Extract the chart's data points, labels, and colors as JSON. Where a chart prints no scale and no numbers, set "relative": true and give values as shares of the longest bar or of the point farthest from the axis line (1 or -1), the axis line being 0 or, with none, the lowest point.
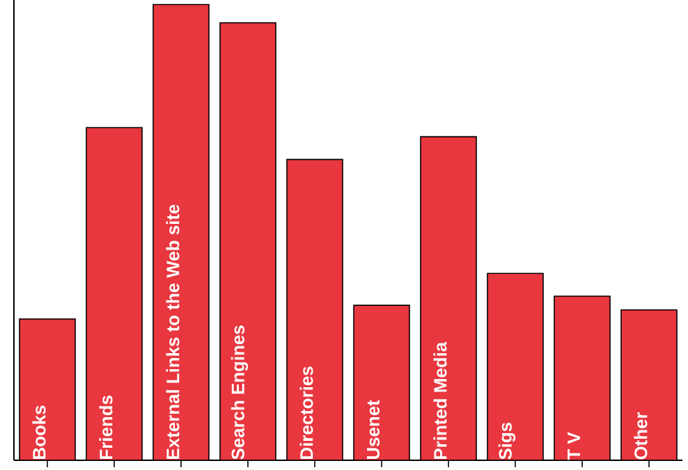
{
  "chart_data": {
    "type": "bar",
    "relative": true,
    "color": "#e8373f",
    "categories": [
      "Books",
      "Friends",
      "External Links to the Web site",
      "Search Engines",
      "Directories",
      "Usenet",
      "Printed Media",
      "Sigs",
      "T V",
      "Other"
    ],
    "values": [
      0.31,
      0.73,
      1,
      0.96,
      0.66,
      0.34,
      0.71,
      0.41,
      0.36,
      0.33
    ]
  }
}
